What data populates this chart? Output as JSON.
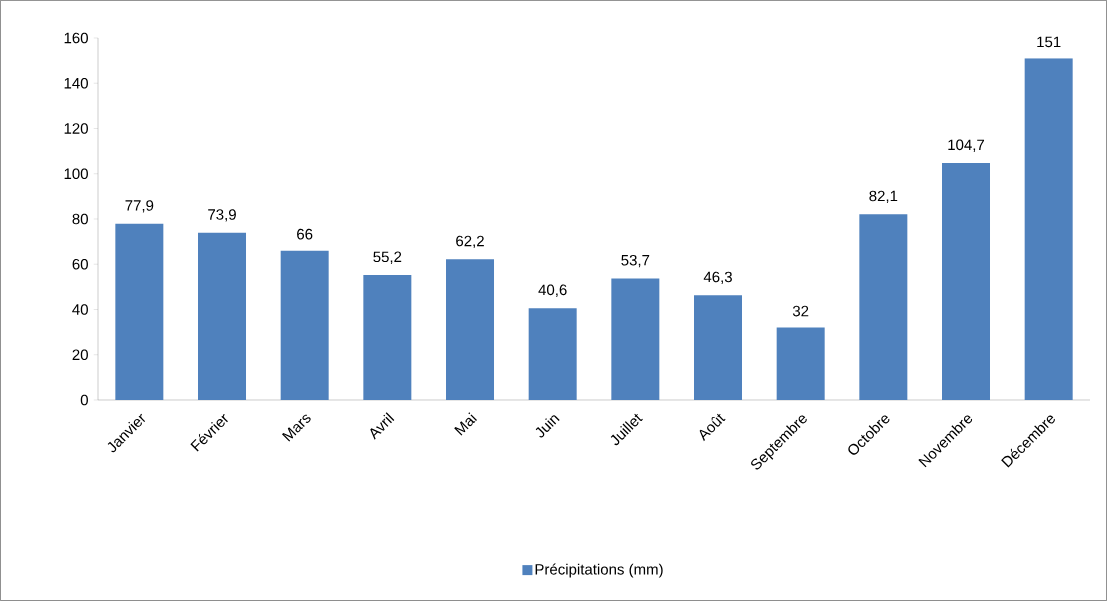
{
  "chart_data": {
    "type": "bar",
    "categories": [
      "Janvier",
      "Février",
      "Mars",
      "Avril",
      "Mai",
      "Juin",
      "Juillet",
      "Août",
      "Septembre",
      "Octobre",
      "Novembre",
      "Décembre"
    ],
    "series": [
      {
        "name": "Précipitations (mm)",
        "color": "#4f81bd",
        "values": [
          77.9,
          73.9,
          66,
          55.2,
          62.2,
          40.6,
          53.7,
          46.3,
          32,
          82.1,
          104.7,
          151
        ],
        "value_labels": [
          "77,9",
          "73,9",
          "66",
          "55,2",
          "62,2",
          "40,6",
          "53,7",
          "46,3",
          "32",
          "82,1",
          "104,7",
          "151"
        ]
      }
    ],
    "ylim": [
      0,
      160
    ],
    "yticks": [
      0,
      20,
      40,
      60,
      80,
      100,
      120,
      140,
      160
    ],
    "legend": "bottom"
  }
}
